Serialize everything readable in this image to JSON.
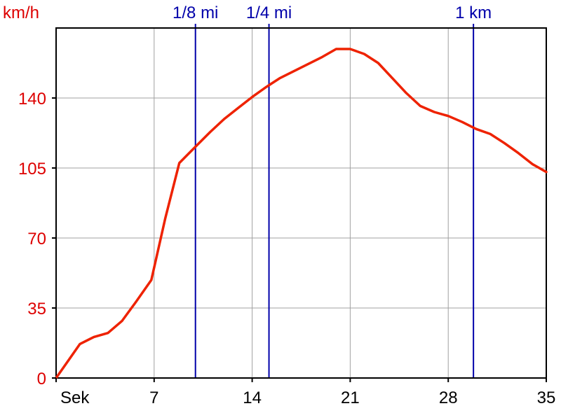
{
  "chart_data": {
    "type": "line",
    "ylabel": "km/h",
    "xlabel": "Sek",
    "xlim": [
      0,
      35
    ],
    "ylim": [
      0,
      175
    ],
    "x_ticks": [
      7,
      14,
      21,
      28,
      35
    ],
    "y_ticks": [
      0,
      35,
      70,
      105,
      140
    ],
    "grid": true,
    "series": [
      {
        "color": "#ee2200",
        "points": [
          [
            0,
            0
          ],
          [
            1.7,
            17
          ],
          [
            2.7,
            20.5
          ],
          [
            3.7,
            22.5
          ],
          [
            4.7,
            28.5
          ],
          [
            5.7,
            38
          ],
          [
            6.8,
            49
          ],
          [
            7.8,
            80
          ],
          [
            8.8,
            107.5
          ],
          [
            10,
            116
          ],
          [
            11,
            123
          ],
          [
            12,
            129.5
          ],
          [
            13,
            135
          ],
          [
            14,
            140.5
          ],
          [
            15,
            145.5
          ],
          [
            16,
            150
          ],
          [
            17,
            153.5
          ],
          [
            18,
            157
          ],
          [
            19,
            160.5
          ],
          [
            20,
            164.5
          ],
          [
            21,
            164.5
          ],
          [
            22,
            162
          ],
          [
            23,
            157.5
          ],
          [
            24,
            150
          ],
          [
            25,
            142.5
          ],
          [
            26,
            136
          ],
          [
            27,
            133
          ],
          [
            28,
            131
          ],
          [
            29,
            128
          ],
          [
            30,
            124.5
          ],
          [
            31,
            122
          ],
          [
            32,
            117.5
          ],
          [
            33,
            112.5
          ],
          [
            34,
            107
          ],
          [
            35,
            103
          ]
        ]
      }
    ],
    "markers": [
      {
        "label": "1/8 mi",
        "x": 9.95
      },
      {
        "label": "1/4 mi",
        "x": 15.2
      },
      {
        "label": "1 km",
        "x": 29.8
      }
    ],
    "colors": {
      "line": "#ee2200",
      "marker": "#0000aa",
      "ytick": "#dd0000",
      "xtick": "#000000",
      "grid": "#a0a0a0",
      "axis": "#000000"
    }
  }
}
